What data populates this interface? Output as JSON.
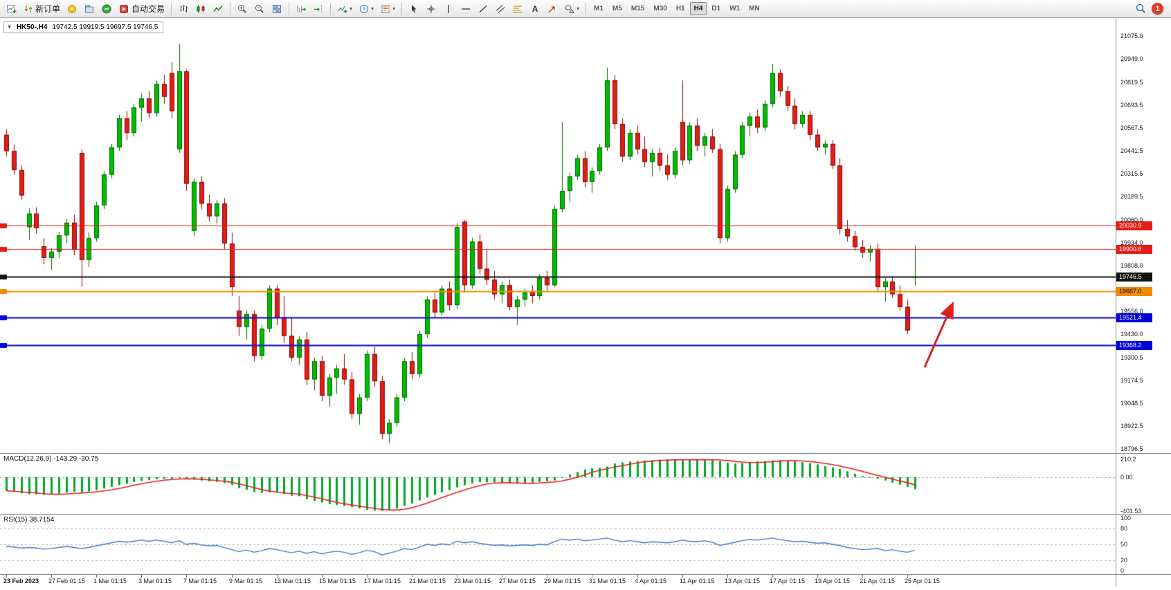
{
  "toolbar": {
    "new_order_label": "新订单",
    "autotrading_label": "自动交易",
    "timeframes": [
      "M1",
      "M5",
      "M15",
      "M30",
      "H1",
      "H4",
      "D1",
      "W1",
      "MN"
    ],
    "active_timeframe": "H4",
    "notification_count": "1"
  },
  "chart": {
    "symbol_title": "HK50-,H4",
    "ohlc_text": "19742.5 19919.5 19697.5 19746.5"
  },
  "annotation": {
    "type": "arrow",
    "color": "#e02020",
    "direction": "up-right"
  },
  "chart_data": {
    "type": "candlestick",
    "symbol": "HK50-",
    "timeframe": "H4",
    "colors": {
      "up": "#00bd00",
      "up_border": "#006400",
      "down": "#e51c17",
      "down_border": "#7e0b08",
      "macd_hist": "#00a82a",
      "macd_signal": "#e81e1e",
      "rsi_line": "#3a7bc8"
    },
    "price_axis": {
      "labels": [
        "21075.0",
        "20949.0",
        "20819.5",
        "20693.5",
        "20567.5",
        "20441.5",
        "20315.5",
        "20189.5",
        "20060.0",
        "19934.0",
        "19808.0",
        "19556.0",
        "19430.0",
        "19300.5",
        "19174.5",
        "19048.5",
        "18922.5",
        "18796.5"
      ],
      "max": 21075.0,
      "min": 18796.5
    },
    "hlines": [
      {
        "price": 20030.9,
        "color": "#e51c17",
        "width": 1,
        "tag": "20030.9",
        "tag_text": "#ffffff"
      },
      {
        "price": 19900.6,
        "color": "#e51c17",
        "width": 1,
        "tag": "19900.6",
        "tag_text": "#ffffff"
      },
      {
        "price": 19746.5,
        "color": "#111111",
        "width": 2,
        "tag": "19746.5",
        "tag_text": "#ffffff"
      },
      {
        "price": 19667.0,
        "color": "#f08c00",
        "width": 2,
        "tag": "19667.0",
        "tag_text": "#000000"
      },
      {
        "price": 19521.4,
        "color": "#0000d8",
        "width": 2,
        "tag": "19521.4",
        "tag_text": "#ffffff"
      },
      {
        "price": 19368.2,
        "color": "#0000d8",
        "width": 2,
        "tag": "19368.2",
        "tag_text": "#ffffff"
      }
    ],
    "candles": [
      [
        20530,
        20560,
        20410,
        20440
      ],
      [
        20440,
        20475,
        20310,
        20335
      ],
      [
        20335,
        20360,
        20170,
        20195
      ],
      [
        20020,
        20125,
        19950,
        20095
      ],
      [
        20095,
        20130,
        19985,
        20015
      ],
      [
        19915,
        19960,
        19815,
        19850
      ],
      [
        19850,
        19905,
        19785,
        19885
      ],
      [
        19885,
        19995,
        19850,
        19975
      ],
      [
        19975,
        20065,
        19930,
        20045
      ],
      [
        20045,
        20090,
        19865,
        19895
      ],
      [
        20430,
        20450,
        19690,
        19840
      ],
      [
        19840,
        19990,
        19800,
        19960
      ],
      [
        19960,
        20160,
        19940,
        20140
      ],
      [
        20140,
        20330,
        20120,
        20310
      ],
      [
        20310,
        20480,
        20290,
        20460
      ],
      [
        20460,
        20640,
        20440,
        20620
      ],
      [
        20620,
        20660,
        20500,
        20540
      ],
      [
        20540,
        20700,
        20520,
        20680
      ],
      [
        20680,
        20760,
        20600,
        20730
      ],
      [
        20730,
        20770,
        20620,
        20650
      ],
      [
        20650,
        20830,
        20630,
        20810
      ],
      [
        20810,
        20860,
        20700,
        20740
      ],
      [
        20870,
        20930,
        20620,
        20660
      ],
      [
        20450,
        21030,
        20430,
        20880
      ],
      [
        20880,
        20890,
        20220,
        20260
      ],
      [
        20000,
        20290,
        19970,
        20270
      ],
      [
        20270,
        20300,
        20120,
        20150
      ],
      [
        20150,
        20200,
        20050,
        20080
      ],
      [
        20080,
        20170,
        20040,
        20150
      ],
      [
        20150,
        20180,
        19900,
        19930
      ],
      [
        19930,
        19990,
        19640,
        19690
      ],
      [
        19560,
        19640,
        19420,
        19470
      ],
      [
        19470,
        19560,
        19400,
        19540
      ],
      [
        19540,
        19560,
        19280,
        19310
      ],
      [
        19310,
        19480,
        19290,
        19460
      ],
      [
        19460,
        19700,
        19440,
        19680
      ],
      [
        19680,
        19700,
        19480,
        19520
      ],
      [
        19520,
        19640,
        19380,
        19420
      ],
      [
        19420,
        19520,
        19280,
        19300
      ],
      [
        19300,
        19420,
        19260,
        19400
      ],
      [
        19400,
        19440,
        19150,
        19180
      ],
      [
        19180,
        19300,
        19120,
        19280
      ],
      [
        19280,
        19310,
        19060,
        19090
      ],
      [
        19090,
        19210,
        19030,
        19190
      ],
      [
        19190,
        19260,
        19100,
        19240
      ],
      [
        19240,
        19320,
        19150,
        19180
      ],
      [
        19180,
        19220,
        18960,
        18990
      ],
      [
        18990,
        19100,
        18930,
        19080
      ],
      [
        19080,
        19340,
        19060,
        19320
      ],
      [
        19320,
        19360,
        19140,
        19170
      ],
      [
        19170,
        19200,
        18850,
        18880
      ],
      [
        18880,
        18960,
        18830,
        18940
      ],
      [
        18940,
        19100,
        18920,
        19080
      ],
      [
        19080,
        19300,
        19060,
        19280
      ],
      [
        19280,
        19330,
        19180,
        19210
      ],
      [
        19210,
        19450,
        19190,
        19430
      ],
      [
        19430,
        19640,
        19410,
        19620
      ],
      [
        19620,
        19660,
        19520,
        19550
      ],
      [
        19550,
        19700,
        19530,
        19680
      ],
      [
        19680,
        19720,
        19560,
        19590
      ],
      [
        19590,
        20040,
        19570,
        20020
      ],
      [
        20050,
        20060,
        19660,
        19700
      ],
      [
        19700,
        19960,
        19680,
        19940
      ],
      [
        19940,
        19980,
        19760,
        19790
      ],
      [
        19790,
        19900,
        19700,
        19730
      ],
      [
        19730,
        19780,
        19620,
        19650
      ],
      [
        19650,
        19720,
        19600,
        19700
      ],
      [
        19700,
        19730,
        19560,
        19580
      ],
      [
        19580,
        19640,
        19480,
        19620
      ],
      [
        19620,
        19680,
        19580,
        19660
      ],
      [
        19660,
        19700,
        19600,
        19640
      ],
      [
        19640,
        19760,
        19620,
        19740
      ],
      [
        19740,
        19780,
        19660,
        19700
      ],
      [
        19700,
        20140,
        19690,
        20120
      ],
      [
        20120,
        20600,
        20100,
        20220
      ],
      [
        20220,
        20320,
        20160,
        20300
      ],
      [
        20300,
        20420,
        20280,
        20400
      ],
      [
        20400,
        20440,
        20240,
        20270
      ],
      [
        20270,
        20350,
        20210,
        20330
      ],
      [
        20330,
        20480,
        20310,
        20460
      ],
      [
        20460,
        20900,
        20440,
        20830
      ],
      [
        20830,
        20860,
        20560,
        20590
      ],
      [
        20590,
        20620,
        20380,
        20410
      ],
      [
        20410,
        20560,
        20390,
        20540
      ],
      [
        20540,
        20580,
        20420,
        20450
      ],
      [
        20450,
        20520,
        20350,
        20380
      ],
      [
        20380,
        20450,
        20300,
        20430
      ],
      [
        20430,
        20460,
        20330,
        20360
      ],
      [
        20360,
        20420,
        20280,
        20310
      ],
      [
        20310,
        20460,
        20290,
        20440
      ],
      [
        20600,
        20830,
        20360,
        20390
      ],
      [
        20390,
        20600,
        20370,
        20580
      ],
      [
        20580,
        20620,
        20440,
        20470
      ],
      [
        20470,
        20540,
        20410,
        20520
      ],
      [
        20520,
        20560,
        20430,
        20450
      ],
      [
        20450,
        20480,
        19930,
        19960
      ],
      [
        19960,
        20250,
        19940,
        20230
      ],
      [
        20230,
        20440,
        20210,
        20420
      ],
      [
        20420,
        20600,
        20400,
        20580
      ],
      [
        20580,
        20650,
        20520,
        20630
      ],
      [
        20630,
        20670,
        20540,
        20570
      ],
      [
        20570,
        20720,
        20550,
        20700
      ],
      [
        20700,
        20920,
        20680,
        20870
      ],
      [
        20870,
        20890,
        20740,
        20770
      ],
      [
        20770,
        20800,
        20660,
        20690
      ],
      [
        20690,
        20730,
        20560,
        20590
      ],
      [
        20590,
        20660,
        20570,
        20640
      ],
      [
        20640,
        20660,
        20500,
        20530
      ],
      [
        20530,
        20560,
        20440,
        20460
      ],
      [
        20460,
        20500,
        20420,
        20480
      ],
      [
        20480,
        20500,
        20340,
        20360
      ],
      [
        20360,
        20400,
        19980,
        20010
      ],
      [
        20010,
        20060,
        19940,
        19970
      ],
      [
        19970,
        20000,
        19890,
        19910
      ],
      [
        19910,
        19950,
        19850,
        19880
      ],
      [
        19880,
        19920,
        19830,
        19900
      ],
      [
        19900,
        19930,
        19660,
        19690
      ],
      [
        19690,
        19740,
        19610,
        19720
      ],
      [
        19720,
        19750,
        19630,
        19650
      ],
      [
        19650,
        19700,
        19560,
        19580
      ],
      [
        19580,
        19620,
        19430,
        19450
      ],
      [
        19742.5,
        19919.5,
        19697.5,
        19746.5
      ]
    ],
    "time_labels": [
      {
        "i": 0,
        "text": "23 Feb 2023"
      },
      {
        "i": 6,
        "text": "27 Feb 01:15"
      },
      {
        "i": 12,
        "text": "1 Mar 01:15"
      },
      {
        "i": 18,
        "text": "3 Mar 01:15"
      },
      {
        "i": 24,
        "text": "7 Mar 01:15"
      },
      {
        "i": 30,
        "text": "9 Mar 01:15"
      },
      {
        "i": 36,
        "text": "13 Mar 01:15"
      },
      {
        "i": 42,
        "text": "15 Mar 01:15"
      },
      {
        "i": 48,
        "text": "17 Mar 01:15"
      },
      {
        "i": 54,
        "text": "21 Mar 01:15"
      },
      {
        "i": 60,
        "text": "23 Mar 01:15"
      },
      {
        "i": 66,
        "text": "27 Mar 01:15"
      },
      {
        "i": 72,
        "text": "29 Mar 01:15"
      },
      {
        "i": 78,
        "text": "31 Mar 01:15"
      },
      {
        "i": 84,
        "text": "4 Apr 01:15"
      },
      {
        "i": 90,
        "text": "11 Apr 01:15"
      },
      {
        "i": 96,
        "text": "13 Apr 01:15"
      },
      {
        "i": 102,
        "text": "17 Apr 01:15"
      },
      {
        "i": 108,
        "text": "19 Apr 01:15"
      },
      {
        "i": 114,
        "text": "21 Apr 01:15"
      },
      {
        "i": 120,
        "text": "25 Apr 01:15"
      }
    ],
    "macd": {
      "label": "MACD(12,26,9)",
      "values_text": "-143.29 -30.75",
      "axis_labels": [
        "210.2",
        "0.00",
        "-401.53"
      ],
      "max": 210.2,
      "min": -401.53,
      "hist": [
        -160,
        -175,
        -190,
        -200,
        -205,
        -210,
        -205,
        -195,
        -185,
        -175,
        -180,
        -170,
        -155,
        -135,
        -115,
        -95,
        -80,
        -60,
        -45,
        -35,
        -25,
        -20,
        -18,
        -15,
        -25,
        -30,
        -40,
        -50,
        -55,
        -70,
        -95,
        -130,
        -150,
        -175,
        -185,
        -180,
        -185,
        -200,
        -220,
        -225,
        -260,
        -280,
        -300,
        -320,
        -330,
        -340,
        -355,
        -370,
        -385,
        -395,
        -400,
        -390,
        -370,
        -340,
        -310,
        -275,
        -240,
        -210,
        -180,
        -155,
        -120,
        -95,
        -75,
        -60,
        -60,
        -65,
        -70,
        -75,
        -78,
        -72,
        -65,
        -58,
        -48,
        -40,
        -10,
        30,
        60,
        90,
        105,
        110,
        125,
        160,
        175,
        185,
        190,
        195,
        200,
        205,
        210,
        205,
        200,
        205,
        210,
        205,
        200,
        190,
        170,
        160,
        165,
        175,
        185,
        190,
        195,
        200,
        195,
        185,
        175,
        165,
        150,
        130,
        115,
        95,
        70,
        40,
        15,
        -5,
        -20,
        -40,
        -65,
        -90,
        -115,
        -143
      ]
    },
    "rsi": {
      "label": "RSI(15)",
      "value_text": "38.7154",
      "axis_labels": [
        "100",
        "80",
        "50",
        "20",
        "0"
      ],
      "levels": [
        80,
        50,
        20
      ],
      "values": [
        46,
        45,
        43,
        44,
        43,
        41,
        42,
        44,
        46,
        44,
        42,
        44,
        47,
        50,
        53,
        56,
        54,
        56,
        58,
        56,
        58,
        56,
        53,
        57,
        50,
        52,
        49,
        47,
        48,
        44,
        40,
        36,
        39,
        35,
        38,
        42,
        40,
        37,
        34,
        37,
        33,
        36,
        32,
        35,
        37,
        35,
        31,
        34,
        39,
        36,
        30,
        33,
        37,
        42,
        40,
        45,
        50,
        48,
        51,
        49,
        56,
        53,
        55,
        52,
        50,
        48,
        49,
        47,
        48,
        49,
        48,
        50,
        49,
        55,
        60,
        58,
        60,
        57,
        58,
        60,
        62,
        58,
        55,
        57,
        55,
        53,
        55,
        54,
        53,
        55,
        58,
        56,
        55,
        57,
        54,
        48,
        51,
        54,
        57,
        59,
        58,
        60,
        62,
        59,
        57,
        55,
        56,
        54,
        52,
        53,
        50,
        48,
        44,
        42,
        40,
        41,
        42,
        38,
        40,
        37,
        35,
        38.7
      ]
    }
  }
}
